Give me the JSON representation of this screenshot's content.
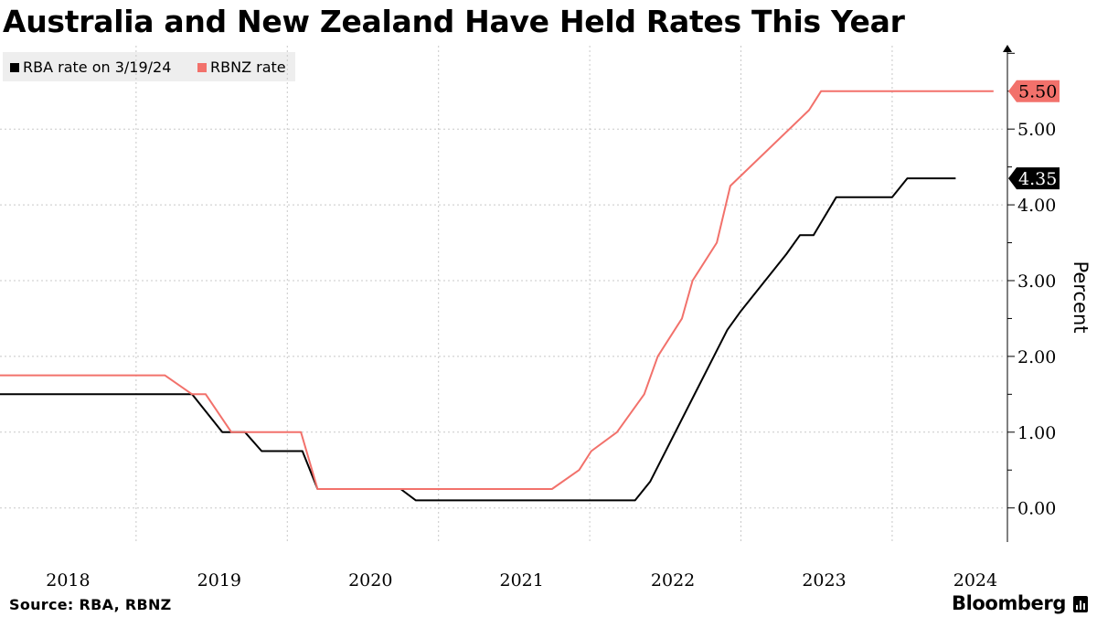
{
  "title": "Australia and New Zealand Have Held Rates This Year",
  "source": "Source: RBA, RBNZ",
  "brand": "Bloomberg",
  "colors": {
    "rba": "#000000",
    "rbnz": "#f2716b",
    "grid": "#c8c8c8"
  },
  "chart_data": {
    "type": "line",
    "title": "Australia and New Zealand Have Held Rates This Year",
    "ylabel": "Percent",
    "ylim": [
      -0.45,
      6.1
    ],
    "yticks": [
      {
        "value": 0,
        "label": "0.00"
      },
      {
        "value": 1,
        "label": "1.00"
      },
      {
        "value": 2,
        "label": "2.00"
      },
      {
        "value": 3,
        "label": "3.00"
      },
      {
        "value": 4,
        "label": "4.00"
      },
      {
        "value": 5,
        "label": "5.00"
      }
    ],
    "xlim": [
      2017.55,
      2024.2
    ],
    "xticks": [
      {
        "value": 2018,
        "label": "2018"
      },
      {
        "value": 2019,
        "label": "2019"
      },
      {
        "value": 2020,
        "label": "2020"
      },
      {
        "value": 2021,
        "label": "2021"
      },
      {
        "value": 2022,
        "label": "2022"
      },
      {
        "value": 2023,
        "label": "2023"
      },
      {
        "value": 2024,
        "label": "2024"
      }
    ],
    "xgrid": [
      2018.45,
      2019.45,
      2020.45,
      2021.45,
      2022.45,
      2023.45
    ],
    "grid": true,
    "legend_position": "top-left",
    "series": [
      {
        "name": "RBA rate on 3/19/24",
        "key": "rba",
        "last_label": "4.35",
        "points": [
          [
            2017.55,
            1.5
          ],
          [
            2018.82,
            1.5
          ],
          [
            2019.02,
            1.0
          ],
          [
            2019.17,
            1.0
          ],
          [
            2019.28,
            0.75
          ],
          [
            2019.55,
            0.75
          ],
          [
            2019.65,
            0.25
          ],
          [
            2020.2,
            0.25
          ],
          [
            2020.3,
            0.1
          ],
          [
            2021.75,
            0.1
          ],
          [
            2021.85,
            0.35
          ],
          [
            2022.36,
            2.35
          ],
          [
            2022.45,
            2.6
          ],
          [
            2022.75,
            3.35
          ],
          [
            2022.84,
            3.6
          ],
          [
            2022.93,
            3.6
          ],
          [
            2023.08,
            4.1
          ],
          [
            2023.45,
            4.1
          ],
          [
            2023.55,
            4.35
          ],
          [
            2023.87,
            4.35
          ]
        ]
      },
      {
        "name": "RBNZ rate",
        "key": "rbnz",
        "last_label": "5.50",
        "points": [
          [
            2017.55,
            1.75
          ],
          [
            2018.64,
            1.75
          ],
          [
            2018.82,
            1.5
          ],
          [
            2018.91,
            1.5
          ],
          [
            2019.08,
            1.0
          ],
          [
            2019.54,
            1.0
          ],
          [
            2019.65,
            0.25
          ],
          [
            2021.2,
            0.25
          ],
          [
            2021.38,
            0.5
          ],
          [
            2021.46,
            0.75
          ],
          [
            2021.63,
            1.0
          ],
          [
            2021.81,
            1.5
          ],
          [
            2021.9,
            2.0
          ],
          [
            2022.06,
            2.5
          ],
          [
            2022.13,
            3.0
          ],
          [
            2022.29,
            3.5
          ],
          [
            2022.38,
            4.25
          ],
          [
            2022.9,
            5.25
          ],
          [
            2022.98,
            5.5
          ],
          [
            2024.12,
            5.5
          ]
        ]
      }
    ]
  }
}
